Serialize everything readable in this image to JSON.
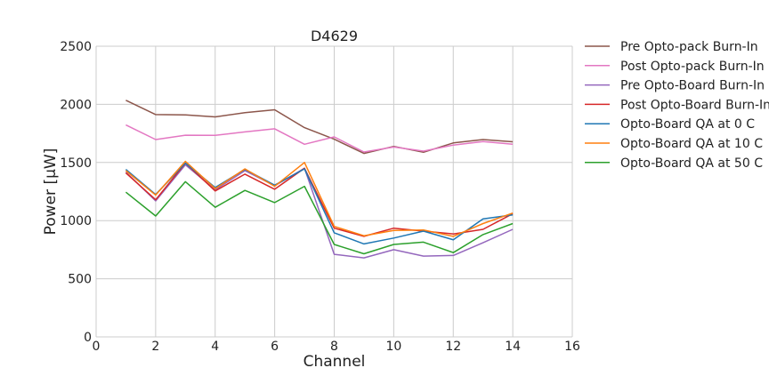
{
  "chart_data": {
    "type": "line",
    "title": "D4629",
    "xlabel": "Channel",
    "ylabel": "Power [μW]",
    "xlim": [
      0,
      16
    ],
    "ylim": [
      0,
      2500
    ],
    "xticks": [
      0,
      2,
      4,
      6,
      8,
      10,
      12,
      14,
      16
    ],
    "yticks": [
      0,
      500,
      1000,
      1500,
      2000,
      2500
    ],
    "grid": true,
    "legend_position": "outside-right",
    "x": [
      1,
      2,
      3,
      4,
      5,
      6,
      7,
      8,
      9,
      10,
      11,
      12,
      13,
      14
    ],
    "series": [
      {
        "name": "Pre Opto-pack Burn-In",
        "color": "#8c564b",
        "values": [
          2035,
          1912,
          1910,
          1892,
          1928,
          1953,
          1800,
          1700,
          1578,
          1638,
          1588,
          1668,
          1697,
          1678
        ]
      },
      {
        "name": "Post Opto-pack Burn-In",
        "color": "#e377c2",
        "values": [
          1823,
          1697,
          1735,
          1733,
          1763,
          1790,
          1657,
          1720,
          1590,
          1633,
          1598,
          1650,
          1680,
          1657
        ]
      },
      {
        "name": "Pre Opto-Board Burn-In",
        "color": "#9467bd",
        "values": [
          1417,
          1170,
          1480,
          1265,
          1430,
          1300,
          1450,
          710,
          680,
          750,
          695,
          700,
          810,
          925
        ]
      },
      {
        "name": "Post Opto-Board Burn-In",
        "color": "#d62728",
        "values": [
          1410,
          1180,
          1495,
          1255,
          1400,
          1270,
          1450,
          935,
          865,
          935,
          910,
          885,
          925,
          1060
        ]
      },
      {
        "name": "Opto-Board QA at 0 C",
        "color": "#1f77b4",
        "values": [
          1440,
          1225,
          1495,
          1285,
          1440,
          1305,
          1445,
          895,
          800,
          850,
          910,
          835,
          1015,
          1050
        ]
      },
      {
        "name": "Opto-Board QA at 10 C",
        "color": "#ff7f0e",
        "values": [
          1430,
          1220,
          1510,
          1275,
          1445,
          1295,
          1500,
          950,
          870,
          915,
          920,
          865,
          975,
          1065
        ]
      },
      {
        "name": "Opto-Board QA at 50 C",
        "color": "#2ca02c",
        "values": [
          1245,
          1040,
          1335,
          1115,
          1260,
          1155,
          1295,
          795,
          715,
          795,
          815,
          725,
          880,
          975
        ]
      }
    ]
  }
}
